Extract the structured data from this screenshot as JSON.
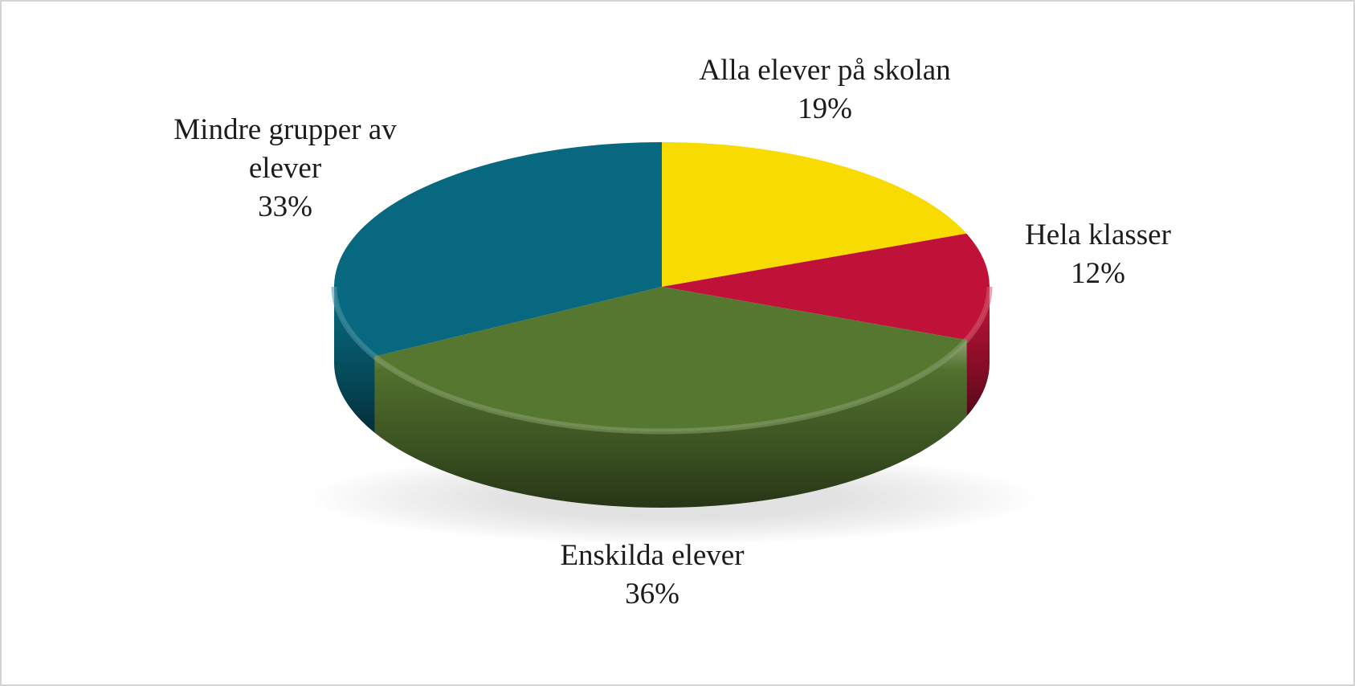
{
  "page": {
    "background_color": "#ffffff",
    "border_color": "#d4d4d4",
    "label_text_color": "#1c1c1c"
  },
  "chart_data": {
    "type": "pie",
    "effect": "3d",
    "title": "",
    "legend": "none",
    "labels_position": "outside",
    "start_angle_deg": 0,
    "direction": "clockwise",
    "slices": [
      {
        "label": "Alla elever på skolan",
        "value": 19,
        "pct_label": "19%",
        "color": "#F8DB00"
      },
      {
        "label": "Hela klasser",
        "value": 12,
        "pct_label": "12%",
        "color": "#C01238"
      },
      {
        "label": "Enskilda elever",
        "value": 36,
        "pct_label": "36%",
        "color": "#567730"
      },
      {
        "label": "Mindre grupper av elever",
        "value": 33,
        "pct_label": "33%",
        "color": "#07687F"
      }
    ]
  }
}
